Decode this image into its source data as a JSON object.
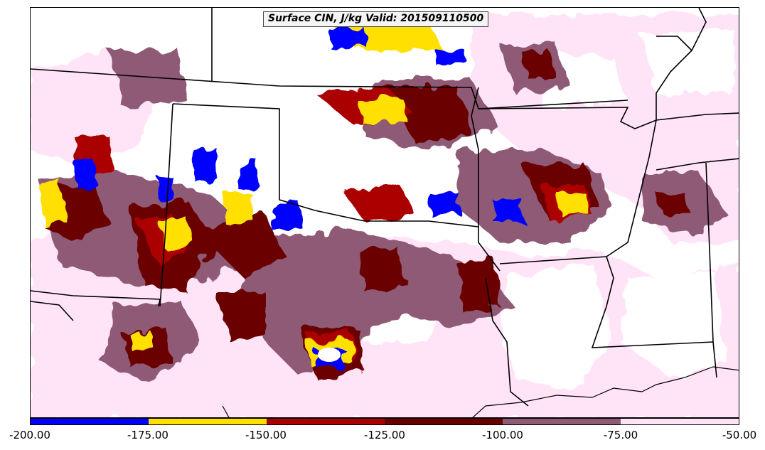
{
  "title": "Surface CIN, J/kg Valid: 201509110500",
  "colorbar": {
    "colors": [
      "#0000ff",
      "#ffe000",
      "#aa0000",
      "#6b0000",
      "#8e5a75",
      "#ffe4f8"
    ],
    "tick_labels": [
      "-200.00",
      "-175.00",
      "-150.00",
      "-125.00",
      "-100.00",
      "-75.00",
      "-50.00"
    ]
  }
}
